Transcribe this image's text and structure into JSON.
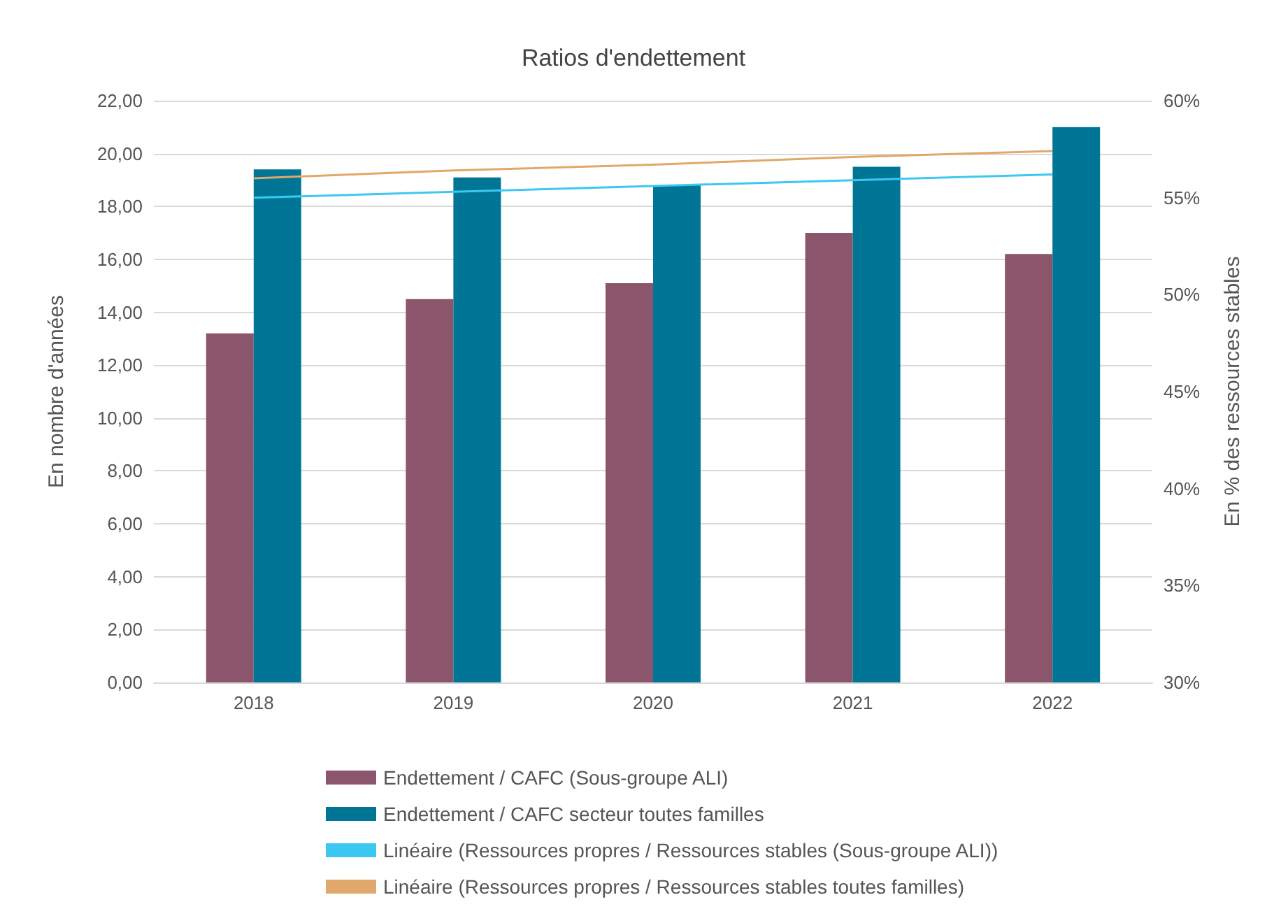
{
  "chart_data": {
    "type": "bar",
    "title": "Ratios d'endettement",
    "ylabel": "En nombre d'années",
    "y2label": "En % des ressources stables",
    "categories": [
      "2018",
      "2019",
      "2020",
      "2021",
      "2022"
    ],
    "series": [
      {
        "name": "Endettement / CAFC (Sous-groupe ALI)",
        "color": "#8b566b",
        "values": [
          13.2,
          14.5,
          15.1,
          17.0,
          16.2
        ]
      },
      {
        "name": "Endettement / CAFC secteur toutes familles",
        "color": "#007596",
        "values": [
          19.4,
          19.1,
          18.8,
          19.5,
          21.0
        ]
      },
      {
        "type": "line",
        "name": "Linéaire (Ressources propres / Ressources stables (Sous-groupe ALI))",
        "color": "#3cc8f0",
        "axis": "y2",
        "values": [
          55.0,
          55.3,
          55.6,
          55.9,
          56.2
        ]
      },
      {
        "type": "line",
        "name": "Linéaire (Ressources propres / Ressources stables toutes familles)",
        "color": "#e0a86a",
        "axis": "y2",
        "values": [
          56.0,
          56.4,
          56.7,
          57.1,
          57.4
        ]
      }
    ],
    "ylim": [
      0,
      22
    ],
    "yticks": [
      {
        "value": 0,
        "label": "0,00"
      },
      {
        "value": 2,
        "label": "2,00"
      },
      {
        "value": 4,
        "label": "4,00"
      },
      {
        "value": 6,
        "label": "6,00"
      },
      {
        "value": 8,
        "label": "8,00"
      },
      {
        "value": 10,
        "label": "10,00"
      },
      {
        "value": 12,
        "label": "12,00"
      },
      {
        "value": 14,
        "label": "14,00"
      },
      {
        "value": 16,
        "label": "16,00"
      },
      {
        "value": 18,
        "label": "18,00"
      },
      {
        "value": 20,
        "label": "20,00"
      },
      {
        "value": 22,
        "label": "22,00"
      }
    ],
    "y2lim": [
      30,
      60
    ],
    "y2ticks": [
      {
        "value": 30,
        "label": "30%"
      },
      {
        "value": 35,
        "label": "35%"
      },
      {
        "value": 40,
        "label": "40%"
      },
      {
        "value": 45,
        "label": "45%"
      },
      {
        "value": 50,
        "label": "50%"
      },
      {
        "value": 55,
        "label": "55%"
      },
      {
        "value": 60,
        "label": "60%"
      }
    ],
    "grid": "y",
    "legend": "bottom",
    "marker": "none",
    "line_style": "solid"
  }
}
